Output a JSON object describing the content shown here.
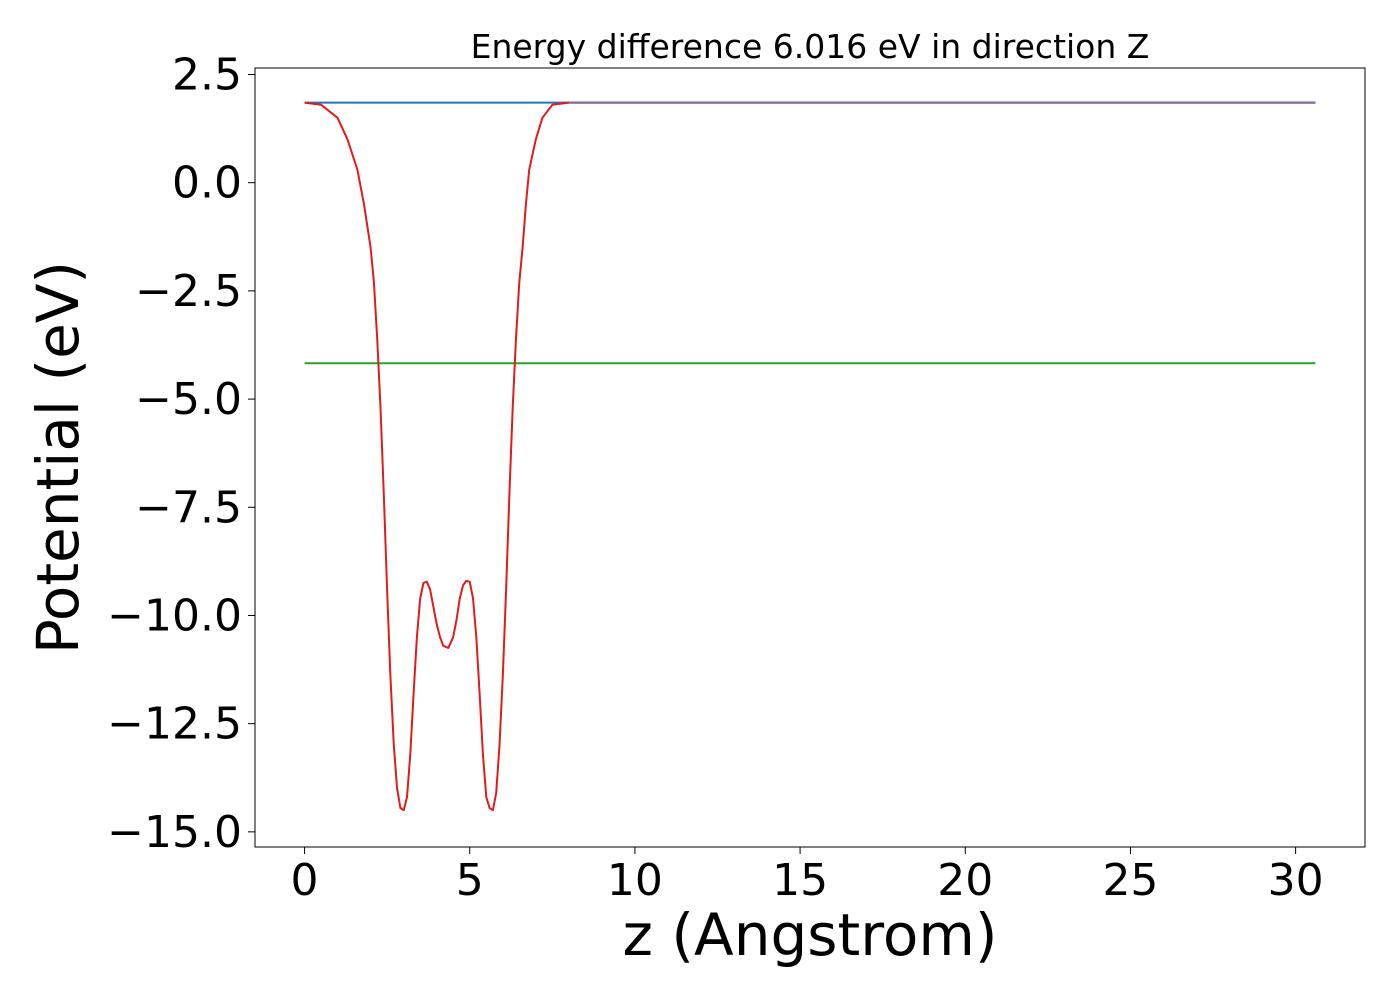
{
  "chart_data": {
    "type": "line",
    "title": "Energy difference 6.016 eV in direction Z",
    "xlabel": "z (Angstrom)",
    "ylabel": "Potential (eV)",
    "xlim": [
      -1.5,
      32.1
    ],
    "ylim": [
      -15.35,
      2.65
    ],
    "xticks": [
      0,
      5,
      10,
      15,
      20,
      25,
      30
    ],
    "xtick_labels": [
      "0",
      "5",
      "10",
      "15",
      "20",
      "25",
      "30"
    ],
    "yticks": [
      2.5,
      0.0,
      -2.5,
      -5.0,
      -7.5,
      -10.0,
      -12.5,
      -15.0
    ],
    "ytick_labels": [
      "2.5",
      "0.0",
      "−2.5",
      "−5.0",
      "−7.5",
      "−10.0",
      "−12.5",
      "−15.0"
    ],
    "grid": false,
    "series": [
      {
        "color": "#1f77b4",
        "x": [
          0,
          30.6
        ],
        "y": [
          1.85,
          1.85
        ]
      },
      {
        "color": "#2ca02c",
        "x": [
          0,
          30.6
        ],
        "y": [
          -4.17,
          -4.17
        ]
      },
      {
        "color": "#e31a1c",
        "x": [
          0,
          0.5,
          1.0,
          1.3,
          1.6,
          1.8,
          2.0,
          2.1,
          2.2,
          2.3,
          2.4,
          2.5,
          2.6,
          2.7,
          2.8,
          2.9,
          3.0,
          3.1,
          3.2,
          3.3,
          3.4,
          3.5,
          3.6,
          3.7,
          3.8,
          3.9,
          4.0,
          4.1,
          4.2,
          4.35,
          4.5,
          4.6,
          4.7,
          4.8,
          4.9,
          5.0,
          5.1,
          5.2,
          5.3,
          5.4,
          5.5,
          5.6,
          5.7,
          5.8,
          5.9,
          6.0,
          6.1,
          6.2,
          6.3,
          6.4,
          6.5,
          6.6,
          6.7,
          6.8,
          7.0,
          7.2,
          7.5,
          8.0,
          8.5,
          9.0,
          10.0,
          12.0,
          15.0,
          20.0,
          25.0,
          30.6
        ],
        "y": [
          1.85,
          1.8,
          1.5,
          1.0,
          0.3,
          -0.5,
          -1.5,
          -2.3,
          -3.6,
          -5.2,
          -7.2,
          -9.4,
          -11.4,
          -13.0,
          -14.0,
          -14.45,
          -14.5,
          -14.2,
          -13.2,
          -11.8,
          -10.5,
          -9.6,
          -9.25,
          -9.22,
          -9.4,
          -9.8,
          -10.2,
          -10.5,
          -10.7,
          -10.75,
          -10.5,
          -10.1,
          -9.6,
          -9.3,
          -9.2,
          -9.22,
          -9.6,
          -10.5,
          -11.8,
          -13.2,
          -14.2,
          -14.45,
          -14.5,
          -14.1,
          -13.0,
          -11.4,
          -9.4,
          -7.2,
          -5.2,
          -3.6,
          -2.3,
          -1.5,
          -0.5,
          0.3,
          1.0,
          1.5,
          1.8,
          1.85,
          1.85,
          1.85,
          1.85,
          1.85,
          1.85,
          1.85,
          1.85,
          1.85
        ]
      },
      {
        "color": "#7f6fa0",
        "x": [
          8.0,
          30.6
        ],
        "y": [
          1.85,
          1.85
        ]
      }
    ]
  }
}
